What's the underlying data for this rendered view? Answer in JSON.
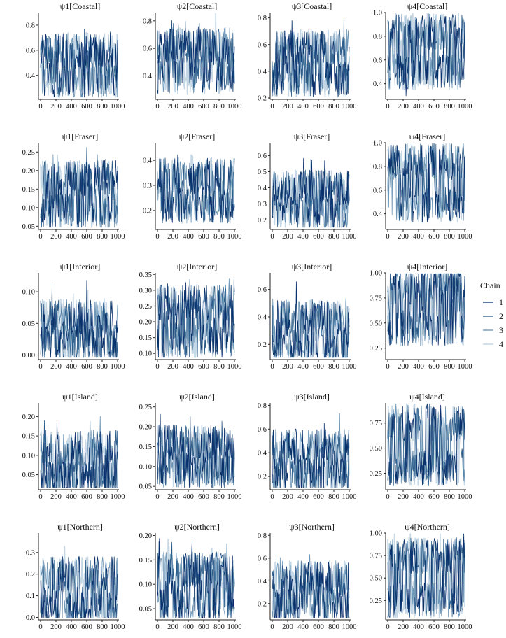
{
  "chart_data": {
    "type": "line",
    "description_type": "mcmc-trace-grid",
    "x": {
      "range": [
        0,
        1000
      ],
      "tick_labels": [
        "0",
        "200",
        "400",
        "600",
        "800",
        "1000"
      ]
    },
    "legend": {
      "title": "Chain",
      "placement": "right",
      "entries": [
        {
          "label": "1",
          "color": "#08306b"
        },
        {
          "label": "2",
          "color": "#2c5d8a"
        },
        {
          "label": "3",
          "color": "#6b94b5"
        },
        {
          "label": "4",
          "color": "#c6d8e6"
        }
      ]
    },
    "panels": [
      {
        "title": "ψ1[Coastal]",
        "yticks": [
          "0.4",
          "0.6",
          "0.8"
        ],
        "ytick_values": [
          0.4,
          0.6,
          0.8
        ],
        "ylim": [
          0.22,
          0.9
        ],
        "modes": [
          0.36,
          0.6
        ]
      },
      {
        "title": "ψ2[Coastal]",
        "yticks": [
          "0.4",
          "0.6",
          "0.8"
        ],
        "ytick_values": [
          0.4,
          0.6,
          0.8
        ],
        "ylim": [
          0.24,
          0.86
        ],
        "modes": [
          0.4,
          0.62
        ]
      },
      {
        "title": "ψ3[Coastal]",
        "yticks": [
          "0.2",
          "0.4",
          "0.6",
          "0.8"
        ],
        "ytick_values": [
          0.2,
          0.4,
          0.6,
          0.8
        ],
        "ylim": [
          0.2,
          0.84
        ],
        "modes": [
          0.34,
          0.58
        ]
      },
      {
        "title": "ψ4[Coastal]",
        "yticks": [
          "0.4",
          "0.6",
          "0.8",
          "1.0"
        ],
        "ytick_values": [
          0.4,
          0.6,
          0.8,
          1.0
        ],
        "ylim": [
          0.28,
          1.0
        ],
        "modes": [
          0.5,
          0.84
        ]
      },
      {
        "title": "ψ1[Fraser]",
        "yticks": [
          "0.05",
          "0.10",
          "0.15",
          "0.20",
          "0.25"
        ],
        "ytick_values": [
          0.05,
          0.1,
          0.15,
          0.2,
          0.25
        ],
        "ylim": [
          0.045,
          0.275
        ],
        "modes": [
          0.09,
          0.18
        ]
      },
      {
        "title": "ψ2[Fraser]",
        "yticks": [
          "0.2",
          "0.3",
          "0.4"
        ],
        "ytick_values": [
          0.2,
          0.3,
          0.4
        ],
        "ylim": [
          0.13,
          0.47
        ],
        "modes": [
          0.22,
          0.34
        ]
      },
      {
        "title": "ψ3[Fraser]",
        "yticks": [
          "0.2",
          "0.3",
          "0.4",
          "0.5",
          "0.6"
        ],
        "ytick_values": [
          0.2,
          0.3,
          0.4,
          0.5,
          0.6
        ],
        "ylim": [
          0.15,
          0.68
        ],
        "modes": [
          0.25,
          0.4
        ]
      },
      {
        "title": "ψ4[Fraser]",
        "yticks": [
          "0.4",
          "0.6",
          "0.8",
          "1.0"
        ],
        "ytick_values": [
          0.4,
          0.6,
          0.8,
          1.0
        ],
        "ylim": [
          0.28,
          1.0
        ],
        "modes": [
          0.48,
          0.84
        ]
      },
      {
        "title": "ψ1[Interior]",
        "yticks": [
          "0.00",
          "0.05",
          "0.10"
        ],
        "ytick_values": [
          0.0,
          0.05,
          0.1
        ],
        "ylim": [
          -0.005,
          0.13
        ],
        "modes": [
          0.02,
          0.06
        ]
      },
      {
        "title": "ψ2[Interior]",
        "yticks": [
          "0.10",
          "0.15",
          "0.20",
          "0.25",
          "0.30",
          "0.35"
        ],
        "ytick_values": [
          0.1,
          0.15,
          0.2,
          0.25,
          0.3,
          0.35
        ],
        "ylim": [
          0.085,
          0.355
        ],
        "modes": [
          0.14,
          0.26
        ]
      },
      {
        "title": "ψ3[Interior]",
        "yticks": [
          "0.2",
          "0.4",
          "0.6"
        ],
        "ytick_values": [
          0.2,
          0.4,
          0.6
        ],
        "ylim": [
          0.1,
          0.72
        ],
        "modes": [
          0.18,
          0.4
        ]
      },
      {
        "title": "ψ4[Interior]",
        "yticks": [
          "0.25",
          "0.50",
          "0.75",
          "1.00"
        ],
        "ytick_values": [
          0.25,
          0.5,
          0.75,
          1.0
        ],
        "ylim": [
          0.15,
          1.0
        ],
        "modes": [
          0.45,
          0.86
        ]
      },
      {
        "title": "ψ1[Island]",
        "yticks": [
          "0.05",
          "0.10",
          "0.15",
          "0.20"
        ],
        "ytick_values": [
          0.05,
          0.1,
          0.15,
          0.2
        ],
        "ylim": [
          0.015,
          0.235
        ],
        "modes": [
          0.04,
          0.12
        ]
      },
      {
        "title": "ψ2[Island]",
        "yticks": [
          "0.05",
          "0.10",
          "0.15",
          "0.20",
          "0.25"
        ],
        "ytick_values": [
          0.05,
          0.1,
          0.15,
          0.2,
          0.25
        ],
        "ylim": [
          0.045,
          0.26
        ],
        "modes": [
          0.09,
          0.16
        ]
      },
      {
        "title": "ψ3[Island]",
        "yticks": [
          "0.2",
          "0.4",
          "0.6",
          "0.8"
        ],
        "ytick_values": [
          0.2,
          0.4,
          0.6,
          0.8
        ],
        "ylim": [
          0.1,
          0.82
        ],
        "modes": [
          0.2,
          0.45
        ]
      },
      {
        "title": "ψ4[Island]",
        "yticks": [
          "0.25",
          "0.50",
          "0.75"
        ],
        "ytick_values": [
          0.25,
          0.5,
          0.75
        ],
        "ylim": [
          0.1,
          0.95
        ],
        "modes": [
          0.3,
          0.75
        ]
      },
      {
        "title": "ψ1[Northern]",
        "yticks": [
          "0.0",
          "0.1",
          "0.2",
          "0.3"
        ],
        "ytick_values": [
          0.0,
          0.1,
          0.2,
          0.3
        ],
        "ylim": [
          -0.005,
          0.39
        ],
        "modes": [
          0.04,
          0.2
        ]
      },
      {
        "title": "ψ2[Northern]",
        "yticks": [
          "0.05",
          "0.10",
          "0.15",
          "0.20"
        ],
        "ytick_values": [
          0.05,
          0.1,
          0.15,
          0.2
        ],
        "ylim": [
          0.03,
          0.205
        ],
        "modes": [
          0.06,
          0.13
        ]
      },
      {
        "title": "ψ3[Northern]",
        "yticks": [
          "0.2",
          "0.4",
          "0.6",
          "0.8"
        ],
        "ytick_values": [
          0.2,
          0.4,
          0.6,
          0.8
        ],
        "ylim": [
          0.07,
          0.82
        ],
        "modes": [
          0.18,
          0.42
        ]
      },
      {
        "title": "ψ4[Northern]",
        "yticks": [
          "0.25",
          "0.50",
          "0.75",
          "1.00"
        ],
        "ytick_values": [
          0.25,
          0.5,
          0.75,
          1.0
        ],
        "ylim": [
          0.05,
          1.0
        ],
        "modes": [
          0.25,
          0.75
        ]
      }
    ]
  }
}
